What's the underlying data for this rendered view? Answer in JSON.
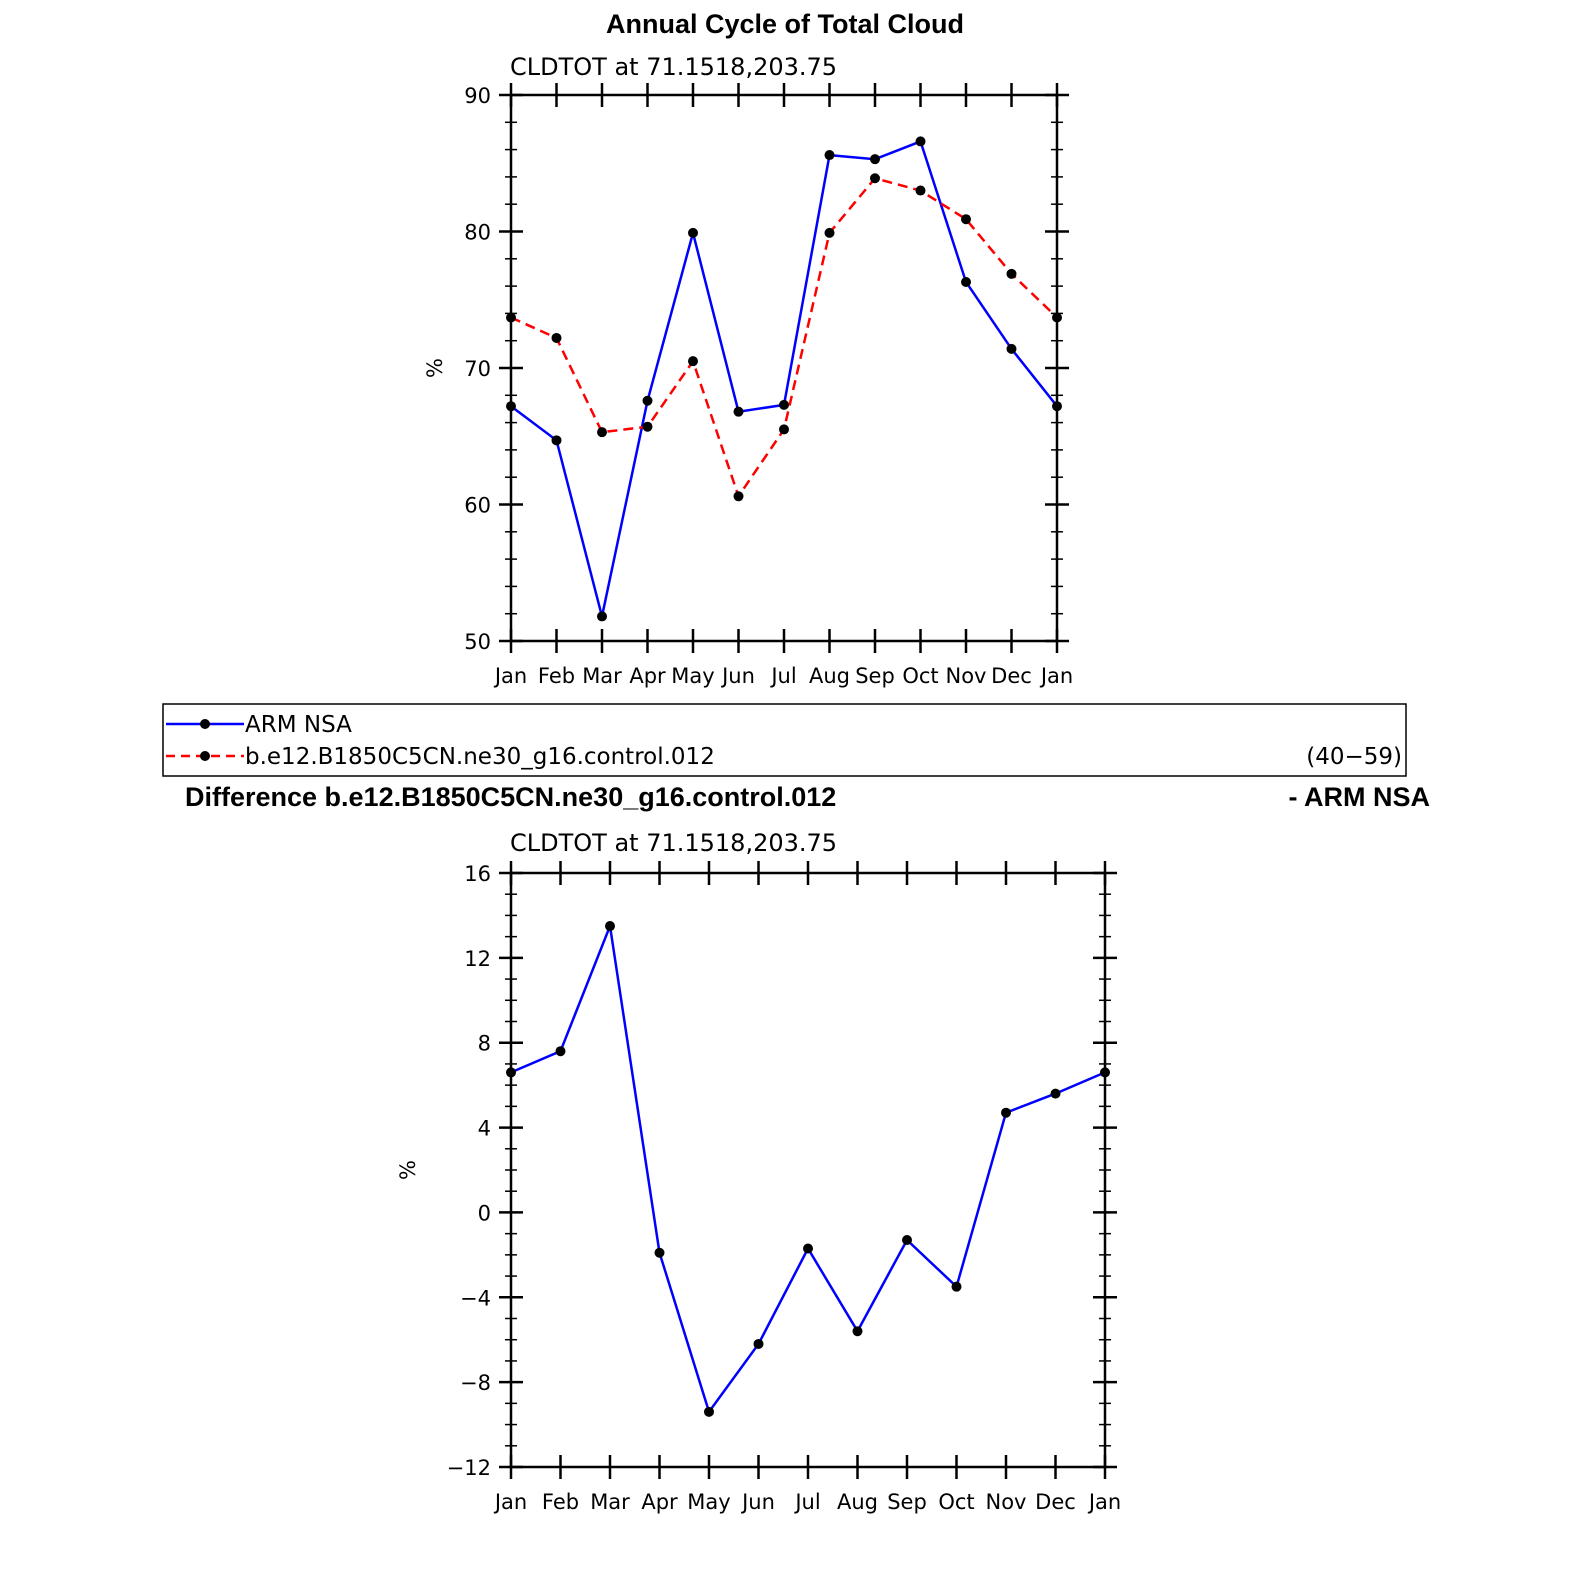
{
  "colors": {
    "obs": "#0000ff",
    "model": "#ff0000",
    "marker": "#000000"
  },
  "chart_data": [
    {
      "type": "line",
      "title": "Annual Cycle of Total Cloud",
      "subtitle": "CLDTOT at 71.1518,203.75",
      "xlabel": "",
      "ylabel": "%",
      "ylim": [
        50,
        90
      ],
      "yticks": [
        "50",
        "60",
        "70",
        "80",
        "90"
      ],
      "ytick_values": [
        50,
        60,
        70,
        80,
        90
      ],
      "categories": [
        "Jan",
        "Feb",
        "Mar",
        "Apr",
        "May",
        "Jun",
        "Jul",
        "Aug",
        "Sep",
        "Oct",
        "Nov",
        "Dec",
        "Jan"
      ],
      "series": [
        {
          "name": "ARM NSA",
          "style": "solid",
          "color": "#0000ff",
          "values": [
            67.2,
            64.7,
            51.8,
            67.6,
            79.9,
            66.8,
            67.3,
            85.6,
            85.3,
            86.6,
            76.3,
            71.4,
            67.2
          ]
        },
        {
          "name": "b.e12.B1850C5CN.ne30_g16.control.012",
          "style": "dashed",
          "color": "#ff0000",
          "values": [
            73.7,
            72.2,
            65.3,
            65.7,
            70.5,
            60.6,
            65.5,
            79.9,
            83.9,
            83.0,
            80.9,
            76.9,
            73.7
          ]
        }
      ],
      "legend": {
        "entries": [
          {
            "label": "ARM NSA"
          },
          {
            "label": "b.e12.B1850C5CN.ne30_g16.control.012",
            "note": "(40−59)"
          }
        ]
      }
    },
    {
      "type": "line",
      "title": "Difference b.e12.B1850C5CN.ne30_g16.control.012",
      "title_right": "- ARM NSA",
      "subtitle": "CLDTOT at 71.1518,203.75",
      "xlabel": "",
      "ylabel": "%",
      "ylim": [
        -12,
        16
      ],
      "yticks": [
        "−12",
        "−8",
        "−4",
        "0",
        "4",
        "8",
        "12",
        "16"
      ],
      "ytick_values": [
        -12,
        -8,
        -4,
        0,
        4,
        8,
        12,
        16
      ],
      "categories": [
        "Jan",
        "Feb",
        "Mar",
        "Apr",
        "May",
        "Jun",
        "Jul",
        "Aug",
        "Sep",
        "Oct",
        "Nov",
        "Dec",
        "Jan"
      ],
      "series": [
        {
          "style": "solid",
          "color": "#0000ff",
          "values": [
            6.6,
            7.6,
            13.5,
            -1.9,
            -9.4,
            -6.2,
            -1.7,
            -5.6,
            -1.3,
            -3.5,
            4.7,
            5.6,
            6.6
          ]
        }
      ]
    }
  ]
}
